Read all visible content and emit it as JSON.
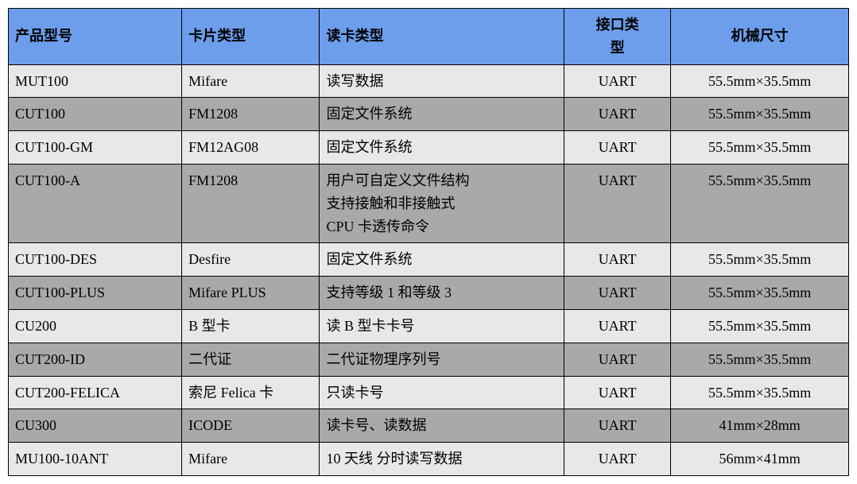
{
  "table": {
    "header_bg": "#6d9eeb",
    "row_light_bg": "#e8e8e8",
    "row_dark_bg": "#a9a9a9",
    "text_color": "#000000",
    "border_color": "#000000",
    "columns": [
      {
        "key": "model",
        "label": "产品型号"
      },
      {
        "key": "card",
        "label": "卡片类型"
      },
      {
        "key": "reader",
        "label": "读卡类型"
      },
      {
        "key": "interface",
        "label": "接口类\n型"
      },
      {
        "key": "size",
        "label": "机械尺寸"
      }
    ],
    "rows": [
      {
        "shade": "light",
        "model": "MUT100",
        "card": "Mifare",
        "reader": "读写数据",
        "interface": "UART",
        "size": "55.5mm×35.5mm"
      },
      {
        "shade": "dark",
        "model": "CUT100",
        "card": "FM1208",
        "reader": "固定文件系统",
        "interface": "UART",
        "size": "55.5mm×35.5mm"
      },
      {
        "shade": "light",
        "model": "CUT100-GM",
        "card": "FM12AG08",
        "reader": "固定文件系统",
        "interface": "UART",
        "size": "55.5mm×35.5mm"
      },
      {
        "shade": "dark",
        "model": "CUT100-A",
        "card": "FM1208",
        "reader": "用户可自定义文件结构\n支持接触和非接触式\nCPU 卡透传命令",
        "interface": "UART",
        "size": "55.5mm×35.5mm"
      },
      {
        "shade": "light",
        "model": "CUT100-DES",
        "card": "Desfire",
        "reader": "固定文件系统",
        "interface": "UART",
        "size": "55.5mm×35.5mm"
      },
      {
        "shade": "dark",
        "model": "CUT100-PLUS",
        "card": "Mifare PLUS",
        "reader": "支持等级 1 和等级 3",
        "interface": "UART",
        "size": "55.5mm×35.5mm"
      },
      {
        "shade": "light",
        "model": "CU200",
        "card": "B 型卡",
        "reader": "读 B 型卡卡号",
        "interface": "UART",
        "size": "55.5mm×35.5mm"
      },
      {
        "shade": "dark",
        "model": "CUT200-ID",
        "card": "二代证",
        "reader": "二代证物理序列号",
        "interface": "UART",
        "size": "55.5mm×35.5mm"
      },
      {
        "shade": "light",
        "model": "CUT200-FELICA",
        "card": "索尼 Felica 卡",
        "reader": "只读卡号",
        "interface": "UART",
        "size": "55.5mm×35.5mm"
      },
      {
        "shade": "dark",
        "model": "CU300",
        "card": "ICODE",
        "reader": "读卡号、读数据",
        "interface": "UART",
        "size": "41mm×28mm"
      },
      {
        "shade": "light",
        "model": "MU100-10ANT",
        "card": "Mifare",
        "reader": "10 天线  分时读写数据",
        "interface": "UART",
        "size": "56mm×41mm"
      }
    ]
  }
}
